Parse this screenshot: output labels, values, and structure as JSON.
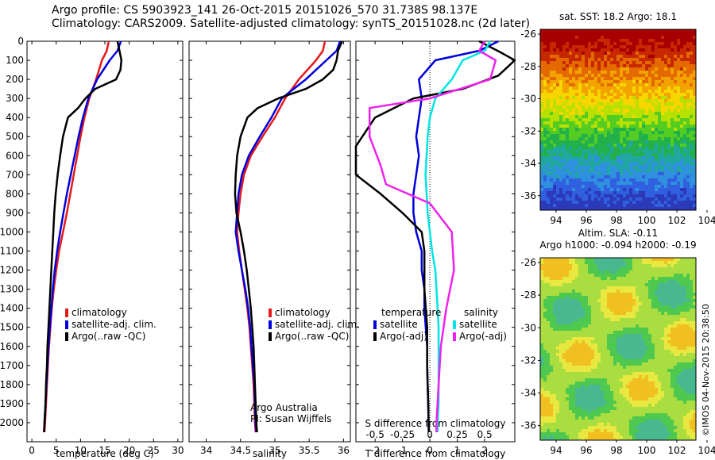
{
  "header": {
    "line1": "Argo profile: CS 5903923_141 26-Oct-2015 20151026_570 31.738S 98.137E",
    "line2": "Climatology: CARS2009. Satellite-adjusted climatology: synTS_20151028.nc (2d later)"
  },
  "colors": {
    "red": "#e41a1c",
    "blue": "#0000dd",
    "black": "#000000",
    "cyan": "#00e5e5",
    "magenta": "#ee22ee"
  },
  "chart_data": [
    {
      "type": "line",
      "panel": "temperature",
      "xlabel": "temperature (deg C)",
      "ylabel": "",
      "xlim": [
        -1,
        31
      ],
      "ylim": [
        2100,
        0
      ],
      "xticks": [
        0,
        5,
        10,
        15,
        20,
        25,
        30
      ],
      "yticks": [
        0,
        100,
        200,
        300,
        400,
        500,
        600,
        700,
        800,
        900,
        1000,
        1100,
        1200,
        1300,
        1400,
        1500,
        1600,
        1700,
        1800,
        1900,
        2000
      ],
      "legend": [
        "climatology",
        "satellite-adj. clim.",
        "Argo(..raw -QC)"
      ],
      "series": [
        {
          "name": "climatology",
          "color": "red",
          "points": [
            [
              15.8,
              0
            ],
            [
              15.4,
              50
            ],
            [
              14.4,
              100
            ],
            [
              13.2,
              200
            ],
            [
              11.8,
              300
            ],
            [
              10.8,
              400
            ],
            [
              10.0,
              500
            ],
            [
              9.3,
              600
            ],
            [
              8.6,
              700
            ],
            [
              7.9,
              800
            ],
            [
              7.2,
              900
            ],
            [
              6.4,
              1000
            ],
            [
              5.6,
              1100
            ],
            [
              5.0,
              1200
            ],
            [
              4.5,
              1300
            ],
            [
              4.1,
              1400
            ],
            [
              3.8,
              1500
            ],
            [
              3.5,
              1600
            ],
            [
              3.3,
              1700
            ],
            [
              3.1,
              1800
            ],
            [
              2.9,
              1900
            ],
            [
              2.7,
              2000
            ],
            [
              2.6,
              2050
            ]
          ]
        },
        {
          "name": "satellite-adj. clim.",
          "color": "blue",
          "points": [
            [
              18.3,
              0
            ],
            [
              17.6,
              50
            ],
            [
              16.0,
              100
            ],
            [
              13.4,
              200
            ],
            [
              11.6,
              300
            ],
            [
              10.5,
              400
            ],
            [
              9.6,
              500
            ],
            [
              8.8,
              600
            ],
            [
              8.0,
              700
            ],
            [
              7.2,
              800
            ],
            [
              6.5,
              900
            ],
            [
              5.8,
              1000
            ],
            [
              5.2,
              1100
            ],
            [
              4.7,
              1200
            ],
            [
              4.3,
              1300
            ],
            [
              4.0,
              1400
            ],
            [
              3.7,
              1500
            ],
            [
              3.4,
              1600
            ],
            [
              3.2,
              1700
            ],
            [
              3.0,
              1800
            ],
            [
              2.8,
              1900
            ],
            [
              2.6,
              2000
            ],
            [
              2.5,
              2050
            ]
          ]
        },
        {
          "name": "Argo(..raw -QC)",
          "color": "black",
          "points": [
            [
              17.6,
              0
            ],
            [
              18.0,
              50
            ],
            [
              18.4,
              100
            ],
            [
              18.2,
              150
            ],
            [
              17.3,
              200
            ],
            [
              13.0,
              250
            ],
            [
              11.0,
              300
            ],
            [
              9.5,
              350
            ],
            [
              7.4,
              400
            ],
            [
              6.4,
              500
            ],
            [
              5.8,
              600
            ],
            [
              5.3,
              700
            ],
            [
              4.9,
              800
            ],
            [
              4.6,
              900
            ],
            [
              4.4,
              1000
            ],
            [
              4.2,
              1100
            ],
            [
              4.0,
              1200
            ],
            [
              3.8,
              1300
            ],
            [
              3.6,
              1400
            ],
            [
              3.4,
              1500
            ],
            [
              3.2,
              1600
            ],
            [
              3.1,
              1700
            ],
            [
              2.9,
              1800
            ],
            [
              2.8,
              1900
            ],
            [
              2.6,
              2000
            ],
            [
              2.5,
              2050
            ]
          ]
        }
      ]
    },
    {
      "type": "line",
      "panel": "salinity",
      "xlabel": "salinity",
      "ylabel": "",
      "xlim": [
        33.75,
        36.1
      ],
      "ylim": [
        2100,
        0
      ],
      "xticks": [
        34,
        34.5,
        35,
        35.5,
        36
      ],
      "legend": [
        "climatology",
        "satellite-adj. clim.",
        "Argo(..raw -QC)"
      ],
      "series": [
        {
          "name": "climatology",
          "color": "red",
          "points": [
            [
              35.73,
              0
            ],
            [
              35.7,
              50
            ],
            [
              35.6,
              100
            ],
            [
              35.35,
              200
            ],
            [
              35.15,
              300
            ],
            [
              35.0,
              400
            ],
            [
              34.82,
              500
            ],
            [
              34.65,
              600
            ],
            [
              34.55,
              700
            ],
            [
              34.5,
              800
            ],
            [
              34.47,
              900
            ],
            [
              34.45,
              1000
            ],
            [
              34.48,
              1100
            ],
            [
              34.52,
              1200
            ],
            [
              34.56,
              1300
            ],
            [
              34.6,
              1400
            ],
            [
              34.63,
              1500
            ],
            [
              34.65,
              1600
            ],
            [
              34.67,
              1700
            ],
            [
              34.69,
              1800
            ],
            [
              34.7,
              1900
            ],
            [
              34.71,
              2000
            ],
            [
              34.72,
              2050
            ]
          ]
        },
        {
          "name": "satellite-adj. clim.",
          "color": "blue",
          "points": [
            [
              35.95,
              0
            ],
            [
              35.9,
              50
            ],
            [
              35.75,
              100
            ],
            [
              35.45,
              200
            ],
            [
              35.1,
              300
            ],
            [
              34.95,
              400
            ],
            [
              34.78,
              500
            ],
            [
              34.62,
              600
            ],
            [
              34.52,
              700
            ],
            [
              34.47,
              800
            ],
            [
              34.45,
              900
            ],
            [
              34.43,
              1000
            ],
            [
              34.47,
              1100
            ],
            [
              34.52,
              1200
            ],
            [
              34.57,
              1300
            ],
            [
              34.61,
              1400
            ],
            [
              34.64,
              1500
            ],
            [
              34.66,
              1600
            ],
            [
              34.68,
              1700
            ],
            [
              34.7,
              1800
            ],
            [
              34.71,
              1900
            ],
            [
              34.72,
              2000
            ],
            [
              34.73,
              2050
            ]
          ]
        },
        {
          "name": "Argo(..raw -QC)",
          "color": "black",
          "points": [
            [
              35.98,
              0
            ],
            [
              35.92,
              50
            ],
            [
              35.9,
              100
            ],
            [
              35.85,
              150
            ],
            [
              35.7,
              200
            ],
            [
              35.45,
              250
            ],
            [
              35.05,
              300
            ],
            [
              34.75,
              350
            ],
            [
              34.6,
              400
            ],
            [
              34.5,
              500
            ],
            [
              34.45,
              600
            ],
            [
              34.43,
              700
            ],
            [
              34.42,
              800
            ],
            [
              34.44,
              900
            ],
            [
              34.5,
              1000
            ],
            [
              34.55,
              1100
            ],
            [
              34.59,
              1200
            ],
            [
              34.62,
              1300
            ],
            [
              34.65,
              1400
            ],
            [
              34.67,
              1500
            ],
            [
              34.69,
              1600
            ],
            [
              34.7,
              1700
            ],
            [
              34.71,
              1800
            ],
            [
              34.72,
              1900
            ],
            [
              34.73,
              2000
            ],
            [
              34.74,
              2050
            ]
          ]
        }
      ],
      "annotation": [
        "Argo Australia",
        "PI: Susan Wijffels"
      ]
    },
    {
      "type": "line",
      "panel": "difference",
      "xlabel": "T difference from climatology",
      "xlabel_top": "S difference from climatology",
      "xlim": [
        -2.7,
        3.1
      ],
      "ylim": [
        2100,
        0
      ],
      "xticks": [
        -2,
        -1,
        0,
        1,
        2
      ],
      "xticks_s": [
        -0.5,
        -0.25,
        0,
        0.25,
        0.5
      ],
      "legend_titles": [
        "temperature",
        "salinity"
      ],
      "legend": [
        "satellite",
        "Argo(-adj)",
        "satellite",
        "Argo(-adj)"
      ],
      "series": [
        {
          "name": "satellite",
          "group": "temperature",
          "color": "blue",
          "points": [
            [
              2.5,
              0
            ],
            [
              1.8,
              50
            ],
            [
              0.2,
              100
            ],
            [
              -0.4,
              200
            ],
            [
              -0.3,
              300
            ],
            [
              -0.4,
              400
            ],
            [
              -0.5,
              500
            ],
            [
              -0.4,
              600
            ],
            [
              -0.5,
              700
            ],
            [
              -0.6,
              800
            ],
            [
              -0.6,
              900
            ],
            [
              -0.5,
              1000
            ],
            [
              -0.3,
              1100
            ],
            [
              -0.3,
              1200
            ],
            [
              -0.2,
              1300
            ],
            [
              -0.2,
              1400
            ],
            [
              -0.15,
              1500
            ],
            [
              -0.1,
              1600
            ],
            [
              -0.1,
              1700
            ],
            [
              -0.08,
              1800
            ],
            [
              -0.06,
              1900
            ],
            [
              -0.05,
              2000
            ],
            [
              -0.04,
              2050
            ]
          ]
        },
        {
          "name": "Argo(-adj)",
          "group": "temperature",
          "color": "black",
          "points": [
            [
              1.8,
              0
            ],
            [
              2.6,
              60
            ],
            [
              3.1,
              100
            ],
            [
              2.5,
              180
            ],
            [
              1.2,
              250
            ],
            [
              -0.6,
              300
            ],
            [
              -2.0,
              400
            ],
            [
              -2.7,
              550
            ],
            [
              -2.7,
              700
            ],
            [
              -1.8,
              800
            ],
            [
              -1.0,
              900
            ],
            [
              -0.3,
              1000
            ],
            [
              -0.2,
              1100
            ],
            [
              -0.2,
              1200
            ],
            [
              -0.2,
              1300
            ],
            [
              -0.15,
              1400
            ],
            [
              -0.1,
              1500
            ],
            [
              -0.1,
              1600
            ],
            [
              -0.1,
              1700
            ],
            [
              -0.08,
              1800
            ],
            [
              -0.06,
              1900
            ],
            [
              -0.05,
              2000
            ],
            [
              -0.04,
              2050
            ]
          ]
        },
        {
          "name": "satellite",
          "group": "salinity",
          "color": "cyan",
          "points": [
            [
              0.55,
              0
            ],
            [
              0.5,
              50
            ],
            [
              0.3,
              100
            ],
            [
              0.2,
              200
            ],
            [
              0.05,
              300
            ],
            [
              0.0,
              400
            ],
            [
              -0.02,
              500
            ],
            [
              -0.03,
              600
            ],
            [
              -0.04,
              700
            ],
            [
              -0.03,
              800
            ],
            [
              -0.02,
              900
            ],
            [
              0.0,
              1000
            ],
            [
              0.02,
              1100
            ],
            [
              0.05,
              1200
            ],
            [
              0.06,
              1300
            ],
            [
              0.07,
              1400
            ],
            [
              0.08,
              1500
            ],
            [
              0.08,
              1600
            ],
            [
              0.08,
              1700
            ],
            [
              0.08,
              1800
            ],
            [
              0.08,
              1900
            ],
            [
              0.07,
              2000
            ],
            [
              0.07,
              2050
            ]
          ]
        },
        {
          "name": "Argo(-adj)",
          "group": "salinity",
          "color": "magenta",
          "points": [
            [
              0.5,
              0
            ],
            [
              0.45,
              50
            ],
            [
              0.6,
              100
            ],
            [
              0.55,
              200
            ],
            [
              0.0,
              300
            ],
            [
              -0.55,
              350
            ],
            [
              -0.55,
              500
            ],
            [
              -0.45,
              650
            ],
            [
              -0.4,
              750
            ],
            [
              0.0,
              850
            ],
            [
              0.2,
              1000
            ],
            [
              0.22,
              1200
            ],
            [
              0.15,
              1400
            ],
            [
              0.1,
              1600
            ],
            [
              0.08,
              1800
            ],
            [
              0.06,
              2000
            ],
            [
              0.06,
              2050
            ]
          ]
        }
      ]
    }
  ],
  "map_sst": {
    "title": "sat. SST: 18.2 Argo: 18.1",
    "yticks": [
      "-26",
      "-28",
      "-30",
      "-32",
      "-34",
      "-36"
    ],
    "xticks": [
      "94",
      "96",
      "98",
      "100",
      "102",
      "104"
    ]
  },
  "map_sla": {
    "title1": "Altim. SLA: -0.11",
    "title2": "Argo h1000: -0.094 h2000: -0.19",
    "yticks": [
      "-26",
      "-28",
      "-30",
      "-32",
      "-34",
      "-36"
    ],
    "xticks": [
      "94",
      "96",
      "98",
      "100",
      "102",
      "104"
    ]
  },
  "credit": "©IMOS 04-Nov-2015 20:38:50"
}
